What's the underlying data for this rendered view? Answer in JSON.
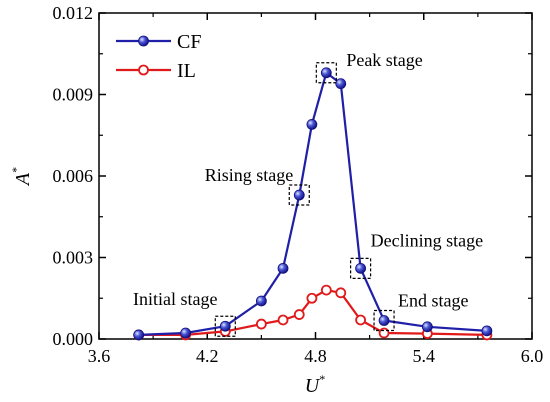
{
  "chart_data": {
    "type": "line",
    "xlabel": "U",
    "xlabel_sup": "*",
    "ylabel": "A",
    "ylabel_sup": "*",
    "xlim": [
      3.6,
      6.0
    ],
    "ylim": [
      0.0,
      0.012
    ],
    "x_ticks": [
      3.6,
      4.2,
      4.8,
      5.4,
      6.0
    ],
    "x_tick_labels": [
      "3.6",
      "4.2",
      "4.8",
      "5.4",
      "6.0"
    ],
    "y_ticks": [
      0.0,
      0.003,
      0.006,
      0.009,
      0.012
    ],
    "y_tick_labels": [
      "0.000",
      "0.003",
      "0.006",
      "0.009",
      "0.012"
    ],
    "legend_position": "top-left",
    "series": [
      {
        "name": "CF",
        "color": "#1f1fa8",
        "marker": "filled-sphere",
        "x": [
          3.82,
          4.08,
          4.3,
          4.5,
          4.62,
          4.71,
          4.78,
          4.86,
          4.94,
          5.05,
          5.18,
          5.42,
          5.75
        ],
        "y": [
          0.00015,
          0.00022,
          0.00047,
          0.0014,
          0.0026,
          0.0053,
          0.0079,
          0.0098,
          0.0094,
          0.0026,
          0.00068,
          0.00045,
          0.0003
        ]
      },
      {
        "name": "IL",
        "color": "#e01a1a",
        "marker": "open-circle",
        "x": [
          3.82,
          4.08,
          4.3,
          4.5,
          4.62,
          4.71,
          4.78,
          4.86,
          4.94,
          5.05,
          5.18,
          5.42,
          5.75
        ],
        "y": [
          0.00015,
          0.00015,
          0.00028,
          0.00055,
          0.0007,
          0.0009,
          0.0015,
          0.0018,
          0.0017,
          0.0007,
          0.00022,
          0.0002,
          0.00015
        ]
      }
    ],
    "annotations": [
      {
        "label": "Initial stage",
        "x": 4.3,
        "y": 0.00047
      },
      {
        "label": "Rising stage",
        "x": 4.71,
        "y": 0.0053
      },
      {
        "label": "Peak stage",
        "x": 4.86,
        "y": 0.0098
      },
      {
        "label": "Declining stage",
        "x": 5.05,
        "y": 0.0026
      },
      {
        "label": "End stage",
        "x": 5.18,
        "y": 0.00068
      }
    ]
  }
}
